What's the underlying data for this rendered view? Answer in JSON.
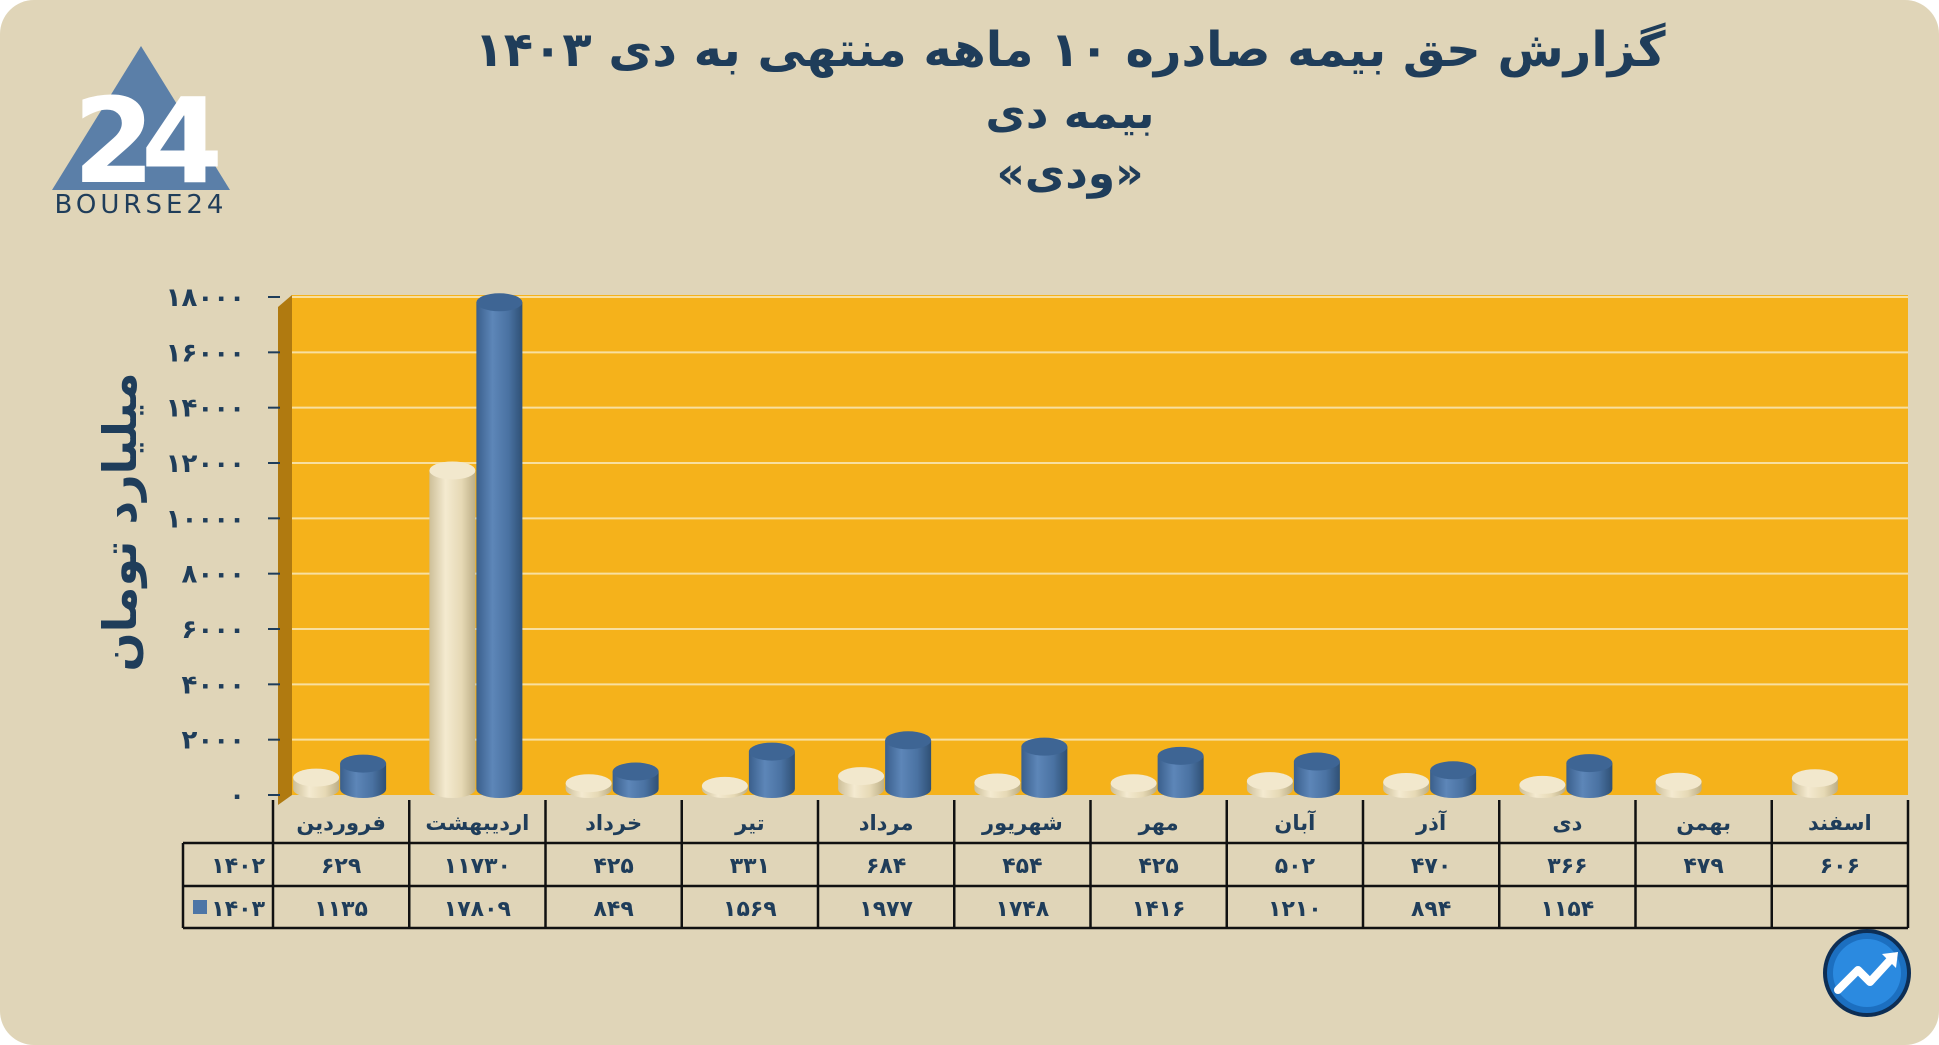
{
  "brand": {
    "logo_text": "BOURSE24"
  },
  "title": {
    "line1": "گزارش  حق بیمه صادره ۱۰ ماهه منتهی به دی ۱۴۰۳",
    "line2": "بیمه دی",
    "line3": "«ودی»"
  },
  "colors": {
    "background": "#e0d5b8",
    "plot_area": "#f5b21b",
    "series_1402": "#e8dcba",
    "series_1403": "#4e76a6",
    "text": "#1f3d5a"
  },
  "chart_data": {
    "type": "bar",
    "style": "3d-cylinder-with-data-table",
    "ylabel": "میلیارد تومان",
    "ylim": [
      0,
      18000
    ],
    "yticks": [
      0,
      2000,
      4000,
      6000,
      8000,
      10000,
      12000,
      14000,
      16000,
      18000
    ],
    "ytick_labels": [
      "۰",
      "۲۰۰۰",
      "۴۰۰۰",
      "۶۰۰۰",
      "۸۰۰۰",
      "۱۰۰۰۰",
      "۱۲۰۰۰",
      "۱۴۰۰۰",
      "۱۶۰۰۰",
      "۱۸۰۰۰"
    ],
    "grid": true,
    "categories": [
      "فروردین",
      "اردیبهشت",
      "خرداد",
      "تیر",
      "مرداد",
      "شهریور",
      "مهر",
      "آبان",
      "آذر",
      "دی",
      "بهمن",
      "اسفند"
    ],
    "series": [
      {
        "name": "۱۴۰۲",
        "values": [
          629,
          11730,
          425,
          331,
          684,
          454,
          425,
          502,
          470,
          366,
          479,
          606
        ],
        "labels": [
          "۶۲۹",
          "۱۱۷۳۰",
          "۴۲۵",
          "۳۳۱",
          "۶۸۴",
          "۴۵۴",
          "۴۲۵",
          "۵۰۲",
          "۴۷۰",
          "۳۶۶",
          "۴۷۹",
          "۶۰۶"
        ]
      },
      {
        "name": "۱۴۰۳",
        "values": [
          1135,
          17809,
          849,
          1569,
          1977,
          1748,
          1416,
          1210,
          894,
          1154,
          null,
          null
        ],
        "labels": [
          "۱۱۳۵",
          "۱۷۸۰۹",
          "۸۴۹",
          "۱۵۶۹",
          "۱۹۷۷",
          "۱۷۴۸",
          "۱۴۱۶",
          "۱۲۱۰",
          "۸۹۴",
          "۱۱۵۴",
          "",
          ""
        ]
      }
    ]
  }
}
